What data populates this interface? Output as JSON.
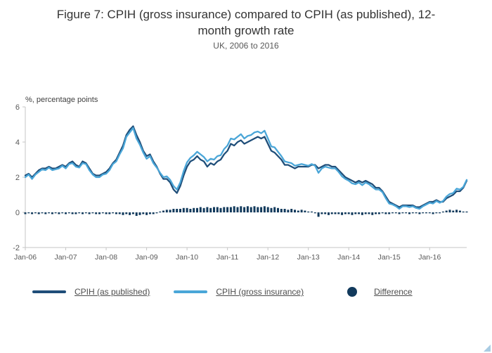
{
  "header": {
    "title": "Figure 7: CPIH (gross insurance) compared to CPIH (as published), 12-month growth rate",
    "subtitle": "UK, 2006 to 2016"
  },
  "chart_data": {
    "type": "line",
    "title": "Figure 7: CPIH (gross insurance) compared to CPIH (as published), 12-month growth rate",
    "subtitle": "UK, 2006 to 2016",
    "y_axis_label": "%, percentage points",
    "ylim": [
      -2,
      6
    ],
    "y_ticks": [
      -2,
      0,
      2,
      4,
      6
    ],
    "x_tick_labels": [
      "Jan-06",
      "Jan-07",
      "Jan-08",
      "Jan-09",
      "Jan-10",
      "Jan-11",
      "Jan-12",
      "Jan-13",
      "Jan-14",
      "Jan-15",
      "Jan-16"
    ],
    "x_frequency": "monthly",
    "grid": false,
    "legend_position": "bottom",
    "series": [
      {
        "name": "CPIH (as published)",
        "color": "#1f4e79",
        "values": [
          2.1,
          2.2,
          2.0,
          2.2,
          2.4,
          2.5,
          2.5,
          2.6,
          2.5,
          2.5,
          2.6,
          2.7,
          2.6,
          2.8,
          2.9,
          2.7,
          2.6,
          2.9,
          2.8,
          2.5,
          2.2,
          2.1,
          2.1,
          2.2,
          2.3,
          2.5,
          2.8,
          3.0,
          3.4,
          3.8,
          4.4,
          4.7,
          4.9,
          4.4,
          4.0,
          3.5,
          3.2,
          3.3,
          2.9,
          2.6,
          2.2,
          1.9,
          1.9,
          1.7,
          1.3,
          1.1,
          1.5,
          2.1,
          2.6,
          2.9,
          3.0,
          3.2,
          3.0,
          2.9,
          2.6,
          2.8,
          2.7,
          2.9,
          3.0,
          3.3,
          3.5,
          3.9,
          3.8,
          4.0,
          4.1,
          3.9,
          4.0,
          4.1,
          4.2,
          4.3,
          4.2,
          4.3,
          3.9,
          3.5,
          3.4,
          3.2,
          3.0,
          2.7,
          2.7,
          2.6,
          2.5,
          2.6,
          2.6,
          2.6,
          2.6,
          2.7,
          2.7,
          2.5,
          2.6,
          2.7,
          2.7,
          2.6,
          2.6,
          2.4,
          2.2,
          2.0,
          1.9,
          1.8,
          1.7,
          1.8,
          1.7,
          1.8,
          1.7,
          1.6,
          1.4,
          1.4,
          1.2,
          0.9,
          0.6,
          0.5,
          0.4,
          0.3,
          0.4,
          0.4,
          0.4,
          0.4,
          0.3,
          0.3,
          0.4,
          0.5,
          0.6,
          0.6,
          0.7,
          0.6,
          0.6,
          0.8,
          0.9,
          1.0,
          1.2,
          1.2,
          1.4,
          1.8
        ]
      },
      {
        "name": "CPIH (gross insurance)",
        "color": "#4aa6d8",
        "values": [
          2.0,
          2.15,
          1.9,
          2.15,
          2.3,
          2.45,
          2.4,
          2.55,
          2.4,
          2.45,
          2.5,
          2.65,
          2.5,
          2.75,
          2.8,
          2.6,
          2.55,
          2.8,
          2.75,
          2.4,
          2.15,
          2.0,
          2.0,
          2.15,
          2.2,
          2.4,
          2.75,
          2.9,
          3.3,
          3.65,
          4.3,
          4.55,
          4.8,
          4.2,
          3.85,
          3.4,
          3.05,
          3.2,
          2.8,
          2.55,
          2.25,
          2.0,
          2.05,
          1.85,
          1.5,
          1.3,
          1.7,
          2.35,
          2.85,
          3.1,
          3.25,
          3.45,
          3.3,
          3.15,
          2.9,
          3.05,
          3.0,
          3.2,
          3.25,
          3.6,
          3.8,
          4.2,
          4.15,
          4.3,
          4.45,
          4.2,
          4.35,
          4.4,
          4.55,
          4.6,
          4.5,
          4.65,
          4.2,
          3.75,
          3.7,
          3.45,
          3.2,
          2.9,
          2.85,
          2.8,
          2.65,
          2.7,
          2.75,
          2.7,
          2.65,
          2.75,
          2.65,
          2.25,
          2.5,
          2.6,
          2.55,
          2.5,
          2.5,
          2.3,
          2.05,
          1.9,
          1.8,
          1.65,
          1.6,
          1.7,
          1.55,
          1.7,
          1.6,
          1.45,
          1.3,
          1.3,
          1.15,
          0.8,
          0.5,
          0.45,
          0.35,
          0.2,
          0.35,
          0.35,
          0.3,
          0.35,
          0.25,
          0.2,
          0.35,
          0.45,
          0.55,
          0.5,
          0.65,
          0.55,
          0.65,
          0.9,
          1.05,
          1.1,
          1.35,
          1.3,
          1.45,
          1.85
        ]
      }
    ],
    "difference": {
      "name": "Difference",
      "color": "#123a5c",
      "values": [
        -0.1,
        -0.05,
        -0.1,
        -0.05,
        -0.1,
        -0.05,
        -0.1,
        -0.05,
        -0.1,
        -0.05,
        -0.1,
        -0.05,
        -0.1,
        -0.05,
        -0.1,
        -0.1,
        -0.05,
        -0.1,
        -0.05,
        -0.1,
        -0.05,
        -0.1,
        -0.1,
        -0.05,
        -0.1,
        -0.1,
        -0.05,
        -0.1,
        -0.1,
        -0.15,
        -0.1,
        -0.15,
        -0.1,
        -0.2,
        -0.15,
        -0.1,
        -0.15,
        -0.1,
        -0.1,
        -0.05,
        0.05,
        0.1,
        0.15,
        0.15,
        0.2,
        0.2,
        0.2,
        0.25,
        0.25,
        0.2,
        0.25,
        0.25,
        0.3,
        0.25,
        0.3,
        0.25,
        0.3,
        0.3,
        0.25,
        0.3,
        0.3,
        0.3,
        0.35,
        0.3,
        0.35,
        0.3,
        0.35,
        0.3,
        0.35,
        0.3,
        0.3,
        0.35,
        0.3,
        0.25,
        0.3,
        0.25,
        0.2,
        0.2,
        0.15,
        0.2,
        0.15,
        0.1,
        0.15,
        0.1,
        0.05,
        0.05,
        -0.05,
        -0.25,
        -0.1,
        -0.1,
        -0.15,
        -0.1,
        -0.1,
        -0.1,
        -0.15,
        -0.1,
        -0.1,
        -0.15,
        -0.1,
        -0.1,
        -0.15,
        -0.1,
        -0.1,
        -0.15,
        -0.1,
        -0.1,
        -0.05,
        -0.1,
        -0.1,
        -0.05,
        -0.05,
        -0.1,
        -0.05,
        -0.05,
        -0.1,
        -0.05,
        -0.05,
        -0.1,
        -0.05,
        -0.05,
        -0.05,
        -0.1,
        -0.05,
        -0.05,
        0.05,
        0.1,
        0.15,
        0.1,
        0.15,
        0.1,
        0.05,
        0.05
      ]
    }
  },
  "legend": {
    "items": [
      {
        "label": "CPIH (as published)",
        "type": "line",
        "color": "#1f4e79"
      },
      {
        "label": "CPIH (gross insurance)",
        "type": "line",
        "color": "#4aa6d8"
      },
      {
        "label": "Difference",
        "type": "dot",
        "color": "#123a5c"
      }
    ]
  },
  "colors": {
    "axis": "#c6c6c6",
    "tick_text": "#595959",
    "title_text": "#333333"
  }
}
